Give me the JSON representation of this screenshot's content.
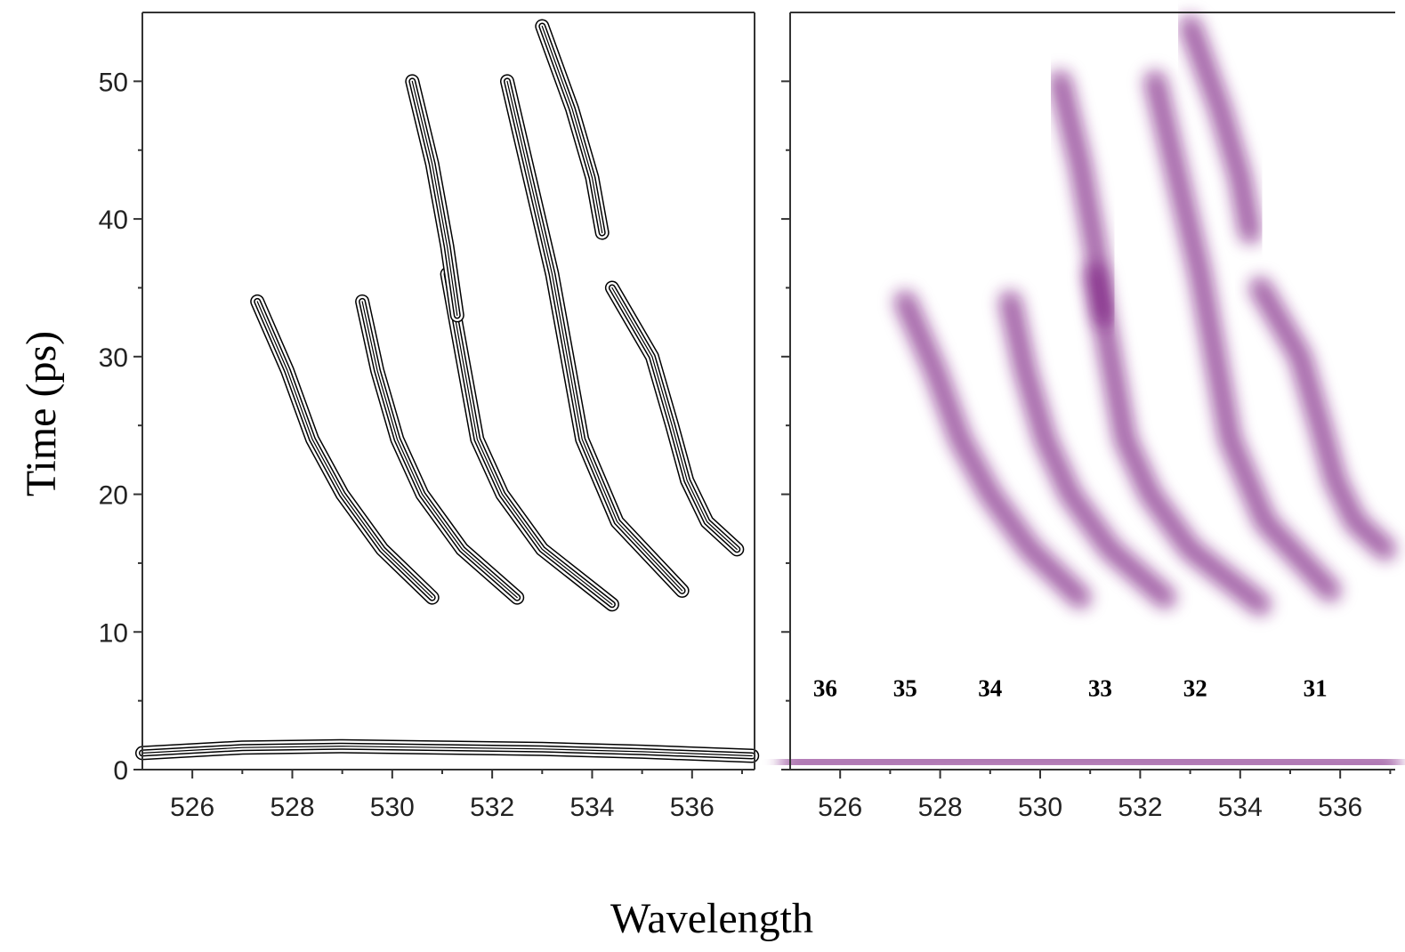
{
  "chart_data": [
    {
      "type": "contour",
      "xlabel": "Wavelength",
      "ylabel": "Time (ps)",
      "color": "#000000",
      "xlim": [
        525,
        537.25
      ],
      "ylim": [
        0,
        55
      ],
      "xticks": [
        526,
        528,
        530,
        532,
        534,
        536
      ],
      "x_minor_ticks": [
        527,
        529,
        531,
        533,
        535,
        537
      ],
      "yticks": [
        0,
        10,
        20,
        30,
        40,
        50
      ],
      "y_minor_ticks": [
        5,
        15,
        25,
        35,
        45
      ],
      "series": [
        {
          "x": [
            527.3,
            527.9,
            528.4,
            529.0,
            529.8,
            530.8
          ],
          "values": [
            34,
            29,
            24,
            20,
            16,
            12.5
          ]
        },
        {
          "x": [
            529.4,
            529.7,
            530.1,
            530.6,
            531.4,
            532.5
          ],
          "values": [
            34,
            29,
            24,
            20,
            16,
            12.5
          ]
        },
        {
          "x": [
            531.1,
            531.4,
            531.7,
            532.2,
            533.0,
            534.4
          ],
          "values": [
            36,
            30,
            24,
            20,
            16,
            12
          ]
        },
        {
          "x": [
            532.3,
            533.2,
            533.5,
            533.8,
            534.5,
            535.8
          ],
          "values": [
            50,
            36,
            30,
            24,
            18,
            13
          ]
        },
        {
          "x": [
            534.4,
            535.2,
            535.6,
            535.9,
            536.3,
            536.9
          ],
          "values": [
            35,
            30,
            25,
            21,
            18,
            16
          ]
        },
        {
          "x": [
            530.4,
            530.8,
            531.1,
            531.3
          ],
          "values": [
            50,
            44,
            38,
            33
          ]
        },
        {
          "x": [
            533.0,
            533.6,
            534.0,
            534.2
          ],
          "values": [
            54,
            48,
            43,
            39
          ]
        },
        {
          "x": [
            525.0,
            527.0,
            529.0,
            531.0,
            533.0,
            535.0,
            537.2
          ],
          "values": [
            1.2,
            1.6,
            1.7,
            1.6,
            1.5,
            1.3,
            1.0
          ]
        }
      ]
    },
    {
      "type": "heatmap",
      "color": "#7a1a80",
      "xlim": [
        525,
        537.1
      ],
      "ylim": [
        0,
        55
      ],
      "xticks": [
        526,
        528,
        530,
        532,
        534,
        536
      ],
      "x_minor_ticks": [
        527,
        529,
        531,
        533,
        535,
        537
      ],
      "yticks": [
        0,
        10,
        20,
        30,
        40,
        50
      ],
      "y_minor_ticks": [
        5,
        15,
        25,
        35,
        45
      ],
      "series": [
        {
          "x": [
            527.3,
            527.9,
            528.4,
            529.0,
            529.8,
            530.8
          ],
          "values": [
            34,
            29,
            24,
            20,
            16,
            12.5
          ]
        },
        {
          "x": [
            529.4,
            529.7,
            530.1,
            530.6,
            531.4,
            532.5
          ],
          "values": [
            34,
            29,
            24,
            20,
            16,
            12.5
          ]
        },
        {
          "x": [
            531.1,
            531.4,
            531.7,
            532.2,
            533.0,
            534.4
          ],
          "values": [
            36,
            30,
            24,
            20,
            16,
            12
          ]
        },
        {
          "x": [
            532.3,
            533.2,
            533.5,
            533.8,
            534.5,
            535.8
          ],
          "values": [
            50,
            36,
            30,
            24,
            18,
            13
          ]
        },
        {
          "x": [
            534.4,
            535.2,
            535.6,
            535.9,
            536.3,
            536.9
          ],
          "values": [
            35,
            30,
            25,
            21,
            18,
            16
          ]
        },
        {
          "x": [
            530.4,
            530.8,
            531.1,
            531.3
          ],
          "values": [
            50,
            44,
            38,
            33
          ]
        },
        {
          "x": [
            533.0,
            533.6,
            534.0,
            534.2
          ],
          "values": [
            54,
            48,
            43,
            39
          ]
        },
        {
          "x": [
            525.0,
            527.0,
            529.0,
            531.0,
            533.0,
            535.0,
            537.0
          ],
          "values": [
            0.5,
            0.6,
            0.7,
            0.7,
            0.6,
            0.5,
            0.4
          ]
        }
      ],
      "annotations": [
        {
          "text": "36",
          "x": 525.7,
          "y": 5
        },
        {
          "text": "35",
          "x": 527.3,
          "y": 5
        },
        {
          "text": "34",
          "x": 529.0,
          "y": 5
        },
        {
          "text": "33",
          "x": 531.2,
          "y": 5
        },
        {
          "text": "32",
          "x": 533.1,
          "y": 5
        },
        {
          "text": "31",
          "x": 535.5,
          "y": 5
        }
      ]
    }
  ]
}
